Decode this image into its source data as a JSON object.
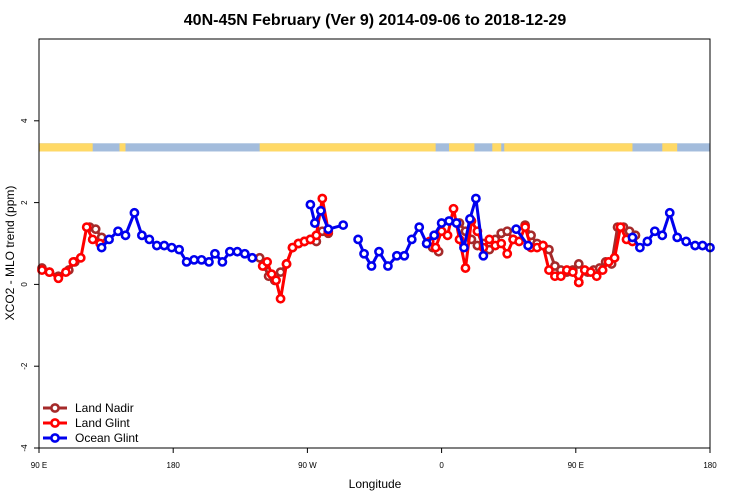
{
  "chart_data": {
    "type": "line",
    "title": "40N-45N February (Ver 9)   2014-09-06 to 2018-12-29",
    "xlabel": "Longitude",
    "ylabel": "XCO2 - MLO trend (ppm)",
    "xlim": [
      90,
      540
    ],
    "ylim": [
      -4,
      6
    ],
    "x_ticks": [
      {
        "value": 90,
        "label": "90 E"
      },
      {
        "value": 180,
        "label": "180"
      },
      {
        "value": 270,
        "label": "90 W"
      },
      {
        "value": 360,
        "label": "0"
      },
      {
        "value": 450,
        "label": "90 E"
      },
      {
        "value": 540,
        "label": "180"
      }
    ],
    "y_ticks": [
      {
        "value": -4,
        "label": "-4"
      },
      {
        "value": -2,
        "label": "-2"
      },
      {
        "value": 0,
        "label": "0"
      },
      {
        "value": 2,
        "label": "2"
      },
      {
        "value": 4,
        "label": "4"
      }
    ],
    "legend_position": "bottom-left",
    "colors": {
      "land_nadir": "#a52a2a",
      "land_glint": "#ff0000",
      "ocean_glint": "#0000ee",
      "land_mask": "#ffd966",
      "ocean_mask": "#a3bcdc"
    },
    "series": [
      {
        "name": "Land Nadir",
        "color": "#a52a2a",
        "segments": [
          {
            "x": [
              92,
              97,
              103,
              110,
              114
            ],
            "y": [
              0.4,
              0.3,
              0.2,
              0.35,
              0.55
            ]
          },
          {
            "x": [
              124,
              128,
              132
            ],
            "y": [
              1.4,
              1.35,
              1.15
            ]
          },
          {
            "x": [
              238,
              241,
              244,
              248,
              252,
              256,
              260,
              264,
              268,
              272,
              276,
              280,
              284
            ],
            "y": [
              0.65,
              0.45,
              0.2,
              0.1,
              0.3,
              0.5,
              0.9,
              1.0,
              1.05,
              1.1,
              1.05,
              1.3,
              1.25
            ]
          },
          {
            "x": [
              350,
              354,
              358
            ],
            "y": [
              1.0,
              0.9,
              0.8
            ]
          },
          {
            "x": [
              372,
              376,
              380,
              384,
              388,
              392,
              396,
              400,
              404,
              408
            ],
            "y": [
              1.5,
              1.3,
              1.1,
              0.95,
              1.0,
              0.85,
              1.1,
              1.25,
              1.3,
              1.1
            ]
          },
          {
            "x": [
              416,
              420,
              424,
              428,
              432,
              436,
              440,
              444,
              448,
              452
            ],
            "y": [
              1.45,
              1.2,
              1.0,
              0.95,
              0.85,
              0.45,
              0.35,
              0.3,
              0.35,
              0.5
            ]
          },
          {
            "x": [
              458,
              462,
              466,
              470,
              474,
              478,
              482,
              486,
              490
            ],
            "y": [
              0.3,
              0.35,
              0.4,
              0.55,
              0.5,
              1.4,
              1.4,
              1.3,
              1.2
            ]
          }
        ]
      },
      {
        "name": "Land Glint",
        "color": "#ff0000",
        "segments": [
          {
            "x": [
              92,
              97,
              103,
              108,
              113,
              118,
              122,
              126,
              131
            ],
            "y": [
              0.35,
              0.3,
              0.15,
              0.3,
              0.55,
              0.65,
              1.4,
              1.1,
              1.0
            ]
          },
          {
            "x": [
              240,
              243,
              246,
              249,
              252,
              256,
              260,
              264,
              268,
              272,
              276,
              280,
              284
            ],
            "y": [
              0.45,
              0.55,
              0.25,
              0.1,
              -0.35,
              0.5,
              0.9,
              1.0,
              1.05,
              1.1,
              1.2,
              2.1,
              1.3
            ]
          },
          {
            "x": [
              352,
              356,
              360,
              364,
              368,
              372,
              376,
              380,
              384,
              388,
              392,
              396,
              400,
              404,
              408
            ],
            "y": [
              1.05,
              0.9,
              1.3,
              1.2,
              1.85,
              1.1,
              0.4,
              1.55,
              1.3,
              0.9,
              1.1,
              0.95,
              1.0,
              0.75,
              1.1
            ]
          },
          {
            "x": [
              412,
              416,
              420,
              424,
              428,
              432,
              436,
              440,
              444,
              448,
              452
            ],
            "y": [
              1.05,
              1.4,
              0.9,
              0.9,
              0.95,
              0.35,
              0.2,
              0.2,
              0.35,
              0.3,
              0.05
            ]
          },
          {
            "x": [
              452,
              456,
              460,
              464,
              468,
              472,
              476,
              480,
              484,
              488
            ],
            "y": [
              0.05,
              0.35,
              0.3,
              0.2,
              0.35,
              0.55,
              0.65,
              1.4,
              1.1,
              1.05
            ]
          }
        ]
      },
      {
        "name": "Ocean Glint",
        "color": "#0000ee",
        "segments": [
          {
            "x": [
              132,
              137,
              143,
              148,
              154,
              159,
              164,
              169,
              174,
              179,
              184,
              189,
              194,
              199,
              204,
              208,
              213,
              218,
              223,
              228,
              233
            ],
            "y": [
              0.9,
              1.1,
              1.3,
              1.2,
              1.75,
              1.2,
              1.1,
              0.95,
              0.95,
              0.9,
              0.85,
              0.55,
              0.6,
              0.6,
              0.55,
              0.75,
              0.55,
              0.8,
              0.8,
              0.75,
              0.65
            ]
          },
          {
            "x": [
              272,
              275,
              279,
              284,
              294
            ],
            "y": [
              1.95,
              1.5,
              1.8,
              1.35,
              1.45
            ]
          },
          {
            "x": [
              304,
              308,
              313,
              318,
              324,
              330,
              335,
              340,
              345,
              350,
              355,
              360,
              365,
              370,
              375,
              379,
              383,
              388
            ],
            "y": [
              1.1,
              0.75,
              0.45,
              0.8,
              0.45,
              0.7,
              0.7,
              1.1,
              1.4,
              1.0,
              1.2,
              1.5,
              1.55,
              1.5,
              0.9,
              1.6,
              2.1,
              0.7
            ]
          },
          {
            "x": [
              410,
              418
            ],
            "y": [
              1.35,
              0.95
            ]
          },
          {
            "x": [
              488,
              493,
              498,
              503,
              508,
              513,
              518,
              524,
              530,
              535,
              540
            ],
            "y": [
              1.15,
              0.9,
              1.05,
              1.3,
              1.2,
              1.75,
              1.15,
              1.05,
              0.95,
              0.95,
              0.9
            ]
          }
        ]
      }
    ],
    "land_ocean_bar": {
      "y_range": [
        3.25,
        3.45
      ],
      "land_intervals": [
        [
          90,
          126
        ],
        [
          144,
          148
        ],
        [
          238,
          356
        ],
        [
          365,
          382
        ],
        [
          394,
          400
        ],
        [
          402,
          488
        ],
        [
          508,
          518
        ]
      ]
    }
  }
}
